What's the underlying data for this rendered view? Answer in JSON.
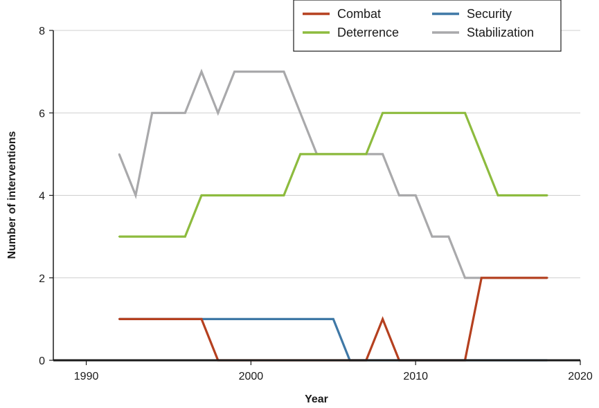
{
  "chart_data": {
    "type": "line",
    "title": "",
    "xlabel": "Year",
    "ylabel": "Number of interventions",
    "xlim": [
      1988,
      2020
    ],
    "ylim": [
      0,
      8
    ],
    "x_ticks": [
      1990,
      2000,
      2010,
      2020
    ],
    "y_ticks": [
      0,
      2,
      4,
      6,
      8
    ],
    "grid": "horizontal",
    "legend_position": "top-right",
    "x": [
      1992,
      1993,
      1994,
      1995,
      1996,
      1997,
      1998,
      1999,
      2000,
      2001,
      2002,
      2003,
      2004,
      2005,
      2006,
      2007,
      2008,
      2009,
      2010,
      2011,
      2012,
      2013,
      2014,
      2015,
      2016,
      2017,
      2018
    ],
    "series": [
      {
        "name": "Combat",
        "color": "#b5401f",
        "values": [
          1,
          1,
          1,
          1,
          1,
          1,
          0,
          0,
          0,
          0,
          0,
          0,
          0,
          0,
          0,
          0,
          1,
          0,
          0,
          0,
          0,
          0,
          2,
          2,
          2,
          2,
          2
        ]
      },
      {
        "name": "Security",
        "color": "#3f78a6",
        "values": [
          1,
          1,
          1,
          1,
          1,
          1,
          1,
          1,
          1,
          1,
          1,
          1,
          1,
          1,
          0,
          0,
          0,
          0,
          0,
          0,
          0,
          0,
          0,
          0,
          0,
          0,
          0
        ]
      },
      {
        "name": "Deterrence",
        "color": "#8dbb3e",
        "values": [
          3,
          3,
          3,
          3,
          3,
          4,
          4,
          4,
          4,
          4,
          4,
          5,
          5,
          5,
          5,
          5,
          6,
          6,
          6,
          6,
          6,
          6,
          5,
          4,
          4,
          4,
          4
        ]
      },
      {
        "name": "Stabilization",
        "color": "#a9a9ab",
        "values": [
          5,
          4,
          6,
          6,
          6,
          7,
          6,
          7,
          7,
          7,
          7,
          6,
          5,
          5,
          5,
          5,
          5,
          4,
          4,
          3,
          3,
          2,
          2,
          2,
          2,
          2,
          2
        ]
      }
    ]
  }
}
